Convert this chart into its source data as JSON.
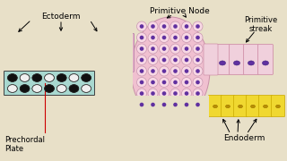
{
  "bg_color": "#e8e0c8",
  "ecto_pink": "#e8b0cc",
  "ecto_border": "#b888a8",
  "nucleus_purple": "#6030a0",
  "endoderm_yellow": "#f0d830",
  "endoderm_border": "#c8a800",
  "endoderm_nucleus": "#b89000",
  "notochord_cyan": "#a8d8d0",
  "prim_node_pink": "#f0c0d0",
  "prim_node_border": "#c890a8",
  "prim_streak_light": "#f0d0dc",
  "small_cell_fill": "#f8d8e4",
  "small_cell_border": "#c898b0",
  "small_nucleus": "#6030a0",
  "label_ectoderm": "Ectoderm",
  "label_prechordal": "Prechordal\nPlate",
  "label_primitive_node": "Primitive Node",
  "label_primitive_streak": "Primitive\nstreak",
  "label_endoderm": "Endoderm",
  "font_size": 6.0
}
